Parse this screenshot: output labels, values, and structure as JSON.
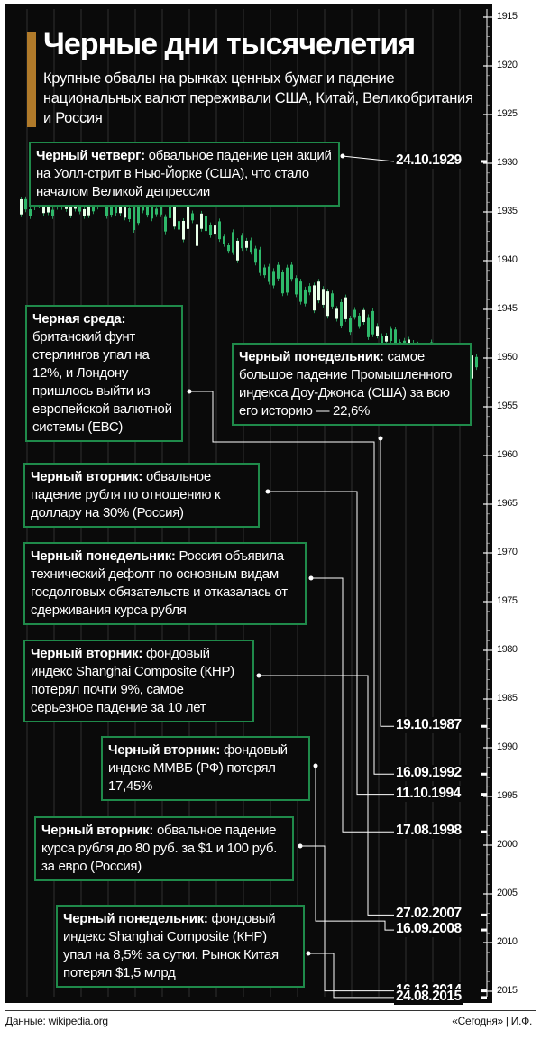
{
  "chart_data": {
    "type": "line",
    "title": "Черные дни тысячелетия",
    "subtitle": "Крупные обвалы на рынках ценных бумаг и падение национальных валют переживали США, Китай, Великобритания и Россия",
    "axis": {
      "years": [
        1915,
        1920,
        1925,
        1930,
        1935,
        1940,
        1945,
        1950,
        1955,
        1960,
        1965,
        1970,
        1975,
        1980,
        1985,
        1990,
        1995,
        2000,
        2005,
        2010,
        2015
      ],
      "ylim": [
        1915,
        2015
      ]
    },
    "events": [
      {
        "date": "24.10.1929",
        "year": 1929.81,
        "term": "Черный четверг:",
        "text": "обвальное падение цен акций на Уолл-стрит в Нью-Йорке (США), что стало началом Великой депрессии"
      },
      {
        "date": "19.10.1987",
        "year": 1987.8,
        "term": "Черный понедельник:",
        "text": "самое большое падение Промышленного индекса Доу-Джонса (США) за всю его историю — 22,6%"
      },
      {
        "date": "16.09.1992",
        "year": 1992.71,
        "term": "Черная среда:",
        "text": "британский фунт стерлингов упал на 12%, и Лондону пришлось выйти из европейской валютной системы (ЕВС)"
      },
      {
        "date": "11.10.1994",
        "year": 1994.78,
        "term": "Черный вторник:",
        "text": "обвальное падение рубля по отношению к доллару на 30% (Россия)"
      },
      {
        "date": "17.08.1998",
        "year": 1998.63,
        "term": "Черный понедельник:",
        "text": "Россия объявила технический дефолт по основным видам госдолговых обязательств и отказалась от сдерживания курса рубля"
      },
      {
        "date": "27.02.2007",
        "year": 2007.16,
        "term": "Черный вторник:",
        "text": "фондовый индекс Shanghai Composite (КНР) потерял почти 9%, самое серьезное падение за 10 лет"
      },
      {
        "date": "16.09.2008",
        "year": 2008.71,
        "term": "Черный вторник:",
        "text": "фондовый индекс ММВБ (РФ) потерял 17,45%"
      },
      {
        "date": "16.12.2014",
        "year": 2014.96,
        "term": "Черный вторник:",
        "text": "обвальное падение курса рубля до 80 руб. за $1 и 100 руб. за евро (Россия)"
      },
      {
        "date": "24.08.2015",
        "year": 2015.64,
        "term": "Черный понедельник:",
        "text": "фондовый индекс Shanghai Composite (КНР) упал на 8,5% за сутки. Рынок Китая потерял $1,5 млрд"
      }
    ]
  },
  "footer": {
    "source": "Данные: wikipedia.org",
    "credit": "«Сегодня» | И.Ф."
  },
  "colors": {
    "panel": "#0a0a0a",
    "accent": "#b07a2a",
    "frame": "#1f8a4a",
    "candle": "#2fb86a"
  }
}
